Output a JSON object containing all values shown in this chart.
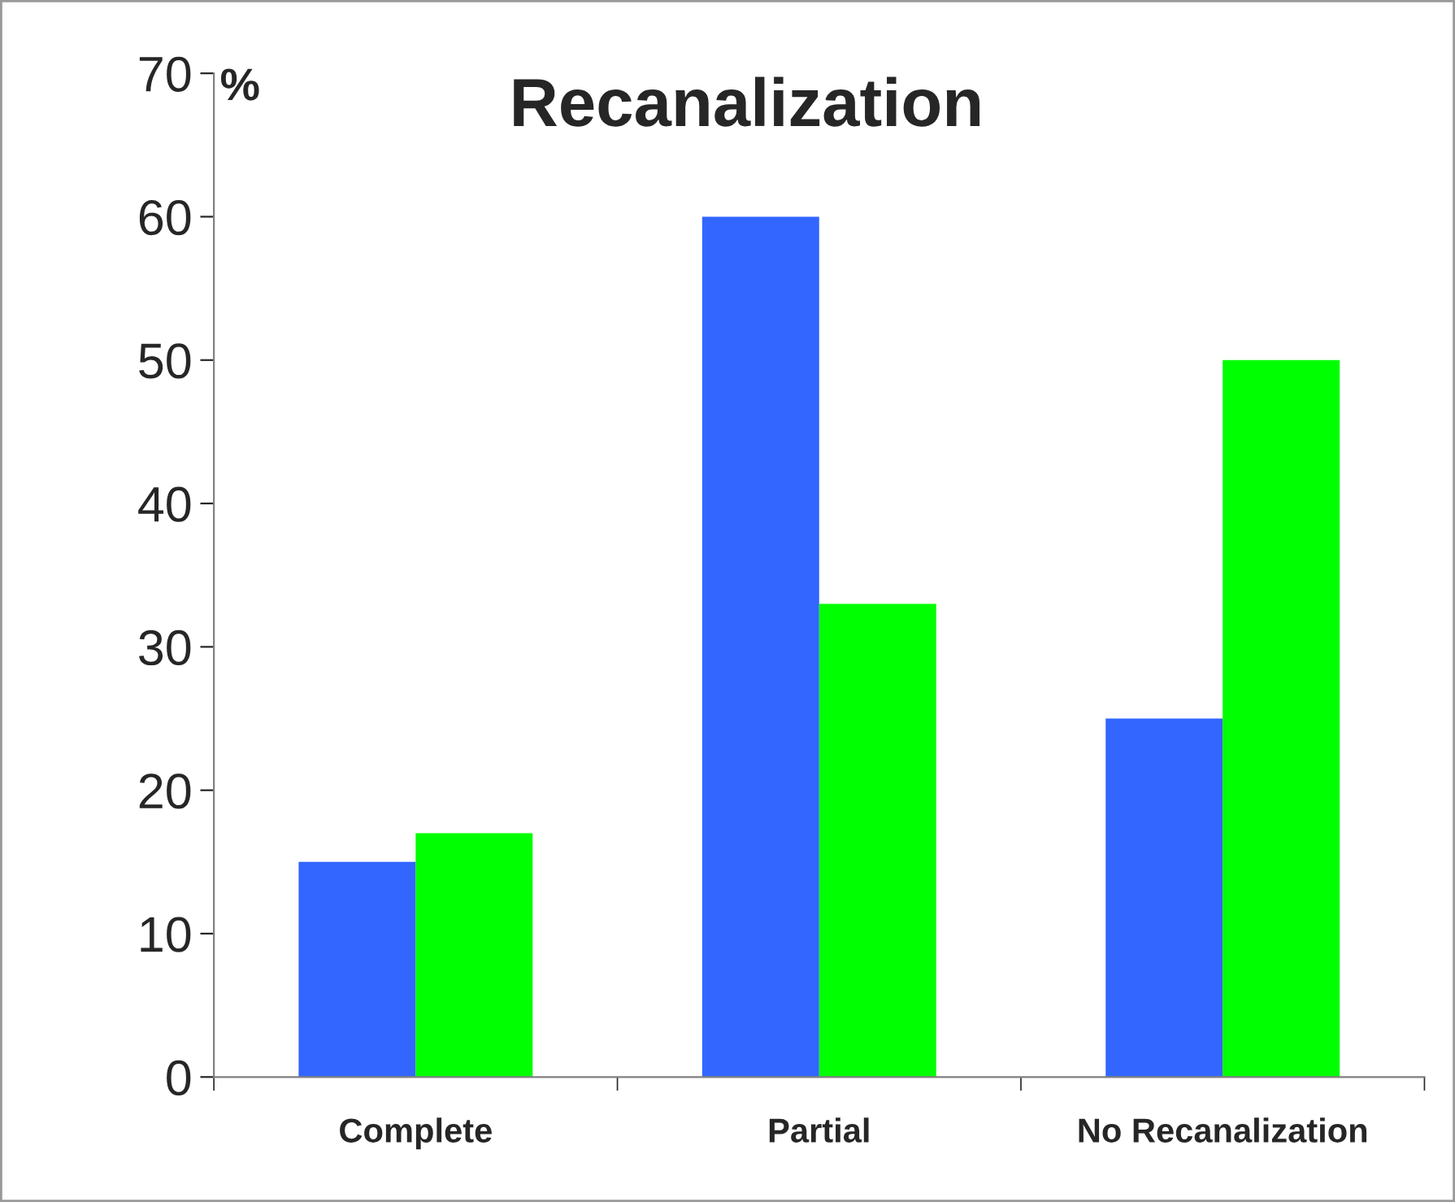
{
  "chart_data": {
    "type": "bar",
    "title": "Recanalization",
    "ylabel": "%",
    "categories": [
      "Complete",
      "Partial",
      "No Recanalization"
    ],
    "series": [
      {
        "color": "#3366ff",
        "values": [
          15,
          60,
          25
        ]
      },
      {
        "color": "#00ff00",
        "values": [
          17,
          33,
          50
        ]
      }
    ],
    "ylim": [
      0,
      70
    ],
    "yticks": [
      0,
      10,
      20,
      30,
      40,
      50,
      60,
      70
    ],
    "grid": false,
    "legend": false
  }
}
